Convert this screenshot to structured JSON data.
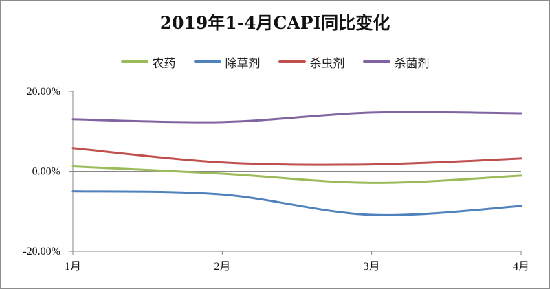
{
  "chart_data": {
    "type": "line",
    "title": "2019年1-4月CAPI同比变化",
    "categories": [
      "1月",
      "2月",
      "3月",
      "4月"
    ],
    "y_ticks": [
      "20.00%",
      "0.00%",
      "-20.00%"
    ],
    "ylim": [
      -20,
      20
    ],
    "grid": false,
    "legend_position": "top",
    "series": [
      {
        "name": "农药",
        "color": "#9bbb59",
        "values": [
          1.2,
          -0.6,
          -2.9,
          -1.1
        ]
      },
      {
        "name": "除草剂",
        "color": "#4f81bd",
        "values": [
          -5.0,
          -5.8,
          -10.9,
          -8.7
        ]
      },
      {
        "name": "杀虫剂",
        "color": "#c0504d",
        "values": [
          5.8,
          2.2,
          1.7,
          3.2
        ]
      },
      {
        "name": "杀菌剂",
        "color": "#8064a2",
        "values": [
          13.0,
          12.3,
          14.7,
          14.5
        ]
      }
    ]
  }
}
